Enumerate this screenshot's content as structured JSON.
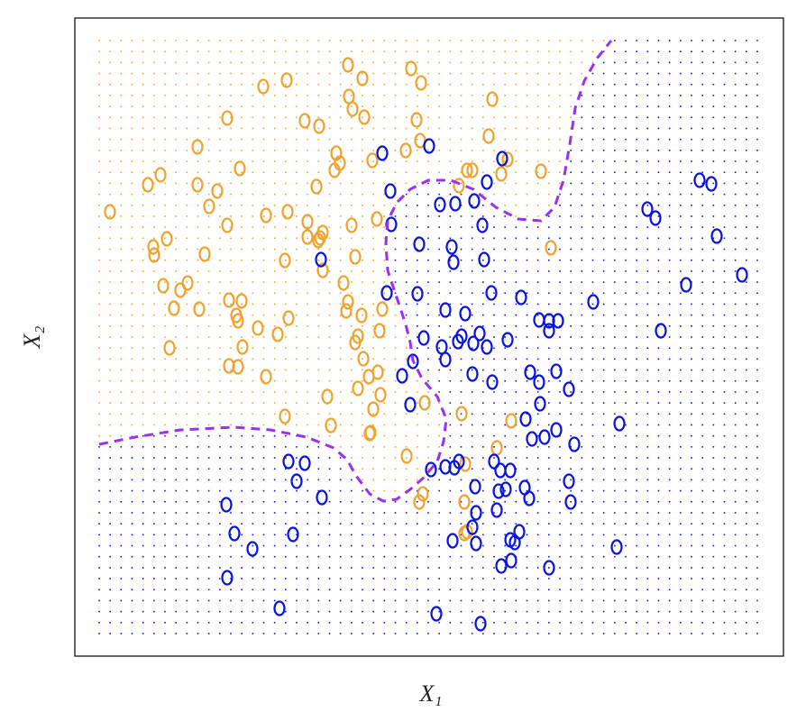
{
  "chart_data": {
    "type": "scatter",
    "xlabel": "X₁",
    "ylabel": "X₂",
    "xlim": [
      83,
      869
    ],
    "ylim": [
      728,
      20
    ],
    "series": [
      {
        "color": "#f0a22e",
        "x": [
          386,
          456,
          402,
          467,
          318,
          292,
          387,
          546,
          391,
          404,
          338,
          354,
          252,
          462,
          542,
          466,
          219,
          373,
          450,
          413,
          377,
          371,
          266,
          563,
          518,
          524,
          600,
          556,
          178,
          164,
          219,
          241,
          351,
          509,
          232,
          122,
          295,
          319,
          252,
          341,
          390,
          418,
          358,
          341,
          355,
          353,
          185,
          170,
          171,
          227,
          316,
          394,
          611,
          358,
          381,
          181,
          208,
          200,
          254,
          268,
          193,
          221,
          386,
          384,
          262,
          264,
          320,
          401,
          424,
          286,
          308,
          397,
          394,
          269,
          188,
          421,
          403,
          254,
          264,
          295,
          409,
          419,
          397,
          363,
          422,
          471,
          414,
          316,
          512,
          567,
          367,
          411,
          410,
          551,
          451,
          516,
          469,
          465,
          515,
          518,
          515
        ],
        "values": [
          72,
          76,
          87,
          92,
          89,
          96,
          107,
          110,
          121,
          130,
          134,
          140,
          131,
          133,
          151,
          156,
          163,
          170,
          167,
          178,
          181,
          189,
          187,
          177,
          189,
          189,
          190,
          193,
          194,
          205,
          205,
          212,
          207,
          206,
          229,
          235,
          239,
          235,
          250,
          246,
          250,
          243,
          258,
          263,
          264,
          267,
          265,
          274,
          283,
          282,
          289,
          285,
          275,
          300,
          314,
          317,
          314,
          322,
          333,
          334,
          342,
          343,
          335,
          345,
          350,
          356,
          353,
          350,
          343,
          364,
          371,
          373,
          380,
          385,
          386,
          367,
          398,
          406,
          407,
          418,
          418,
          413,
          431,
          440,
          438,
          447,
          454,
          462,
          459,
          467,
          472,
          480,
          481,
          497,
          506,
          515,
          548,
          557,
          557,
          590,
          592
        ]
      },
      {
        "color": "#0a14e0",
        "x": [
          476,
          424,
          557,
          540,
          433,
          776,
          789,
          488,
          505,
          526,
          718,
          727,
          535,
          434,
          795,
          465,
          501,
          356,
          503,
          537,
          823,
          761,
          429,
          463,
          545,
          578,
          658,
          494,
          516,
          609,
          598,
          619,
          532,
          512,
          470,
          540,
          563,
          733,
          609,
          490,
          508,
          525,
          494,
          458,
          446,
          524,
          588,
          617,
          546,
          598,
          631,
          455,
          599,
          583,
          687,
          617,
          604,
          590,
          637,
          548,
          478,
          494,
          504,
          509,
          320,
          338,
          555,
          566,
          329,
          527,
          582,
          631,
          553,
          561,
          357,
          587,
          251,
          633,
          551,
          528,
          260,
          325,
          524,
          576,
          502,
          528,
          566,
          571,
          280,
          684,
          556,
          567,
          609,
          252,
          310,
          484,
          533
        ],
        "values": [
          162,
          170,
          176,
          202,
          212,
          200,
          204,
          227,
          226,
          223,
          232,
          242,
          250,
          249,
          262,
          271,
          274,
          288,
          291,
          288,
          305,
          316,
          325,
          326,
          325,
          330,
          335,
          344,
          348,
          356,
          355,
          356,
          370,
          373,
          375,
          385,
          377,
          367,
          367,
          385,
          379,
          381,
          399,
          401,
          417,
          415,
          413,
          412,
          424,
          424,
          432,
          449,
          448,
          465,
          470,
          477,
          485,
          487,
          493,
          512,
          521,
          518,
          519,
          512,
          512,
          514,
          522,
          522,
          534,
          540,
          541,
          534,
          545,
          543,
          552,
          553,
          560,
          557,
          566,
          569,
          592,
          593,
          585,
          590,
          600,
          603,
          599,
          602,
          609,
          607,
          628,
          622,
          630,
          641,
          675,
          681,
          692
        ]
      }
    ],
    "boundary": {
      "color": "#9b30f0",
      "dashed": true,
      "x": [
        110,
        150,
        200,
        260,
        300,
        340,
        370,
        385,
        395,
        410,
        425,
        440,
        455,
        470,
        485,
        492,
        495,
        485,
        468,
        458,
        455,
        450,
        440,
        430,
        428,
        430,
        440,
        455,
        475,
        500,
        525,
        550,
        575,
        600,
        615,
        625,
        632,
        638,
        648,
        662,
        678
      ],
      "values": [
        493,
        485,
        477,
        474,
        477,
        485,
        497,
        510,
        528,
        548,
        556,
        554,
        543,
        530,
        512,
        490,
        465,
        440,
        420,
        400,
        380,
        360,
        330,
        300,
        270,
        245,
        225,
        210,
        200,
        200,
        210,
        230,
        243,
        245,
        230,
        200,
        160,
        120,
        90,
        65,
        45
      ]
    }
  }
}
